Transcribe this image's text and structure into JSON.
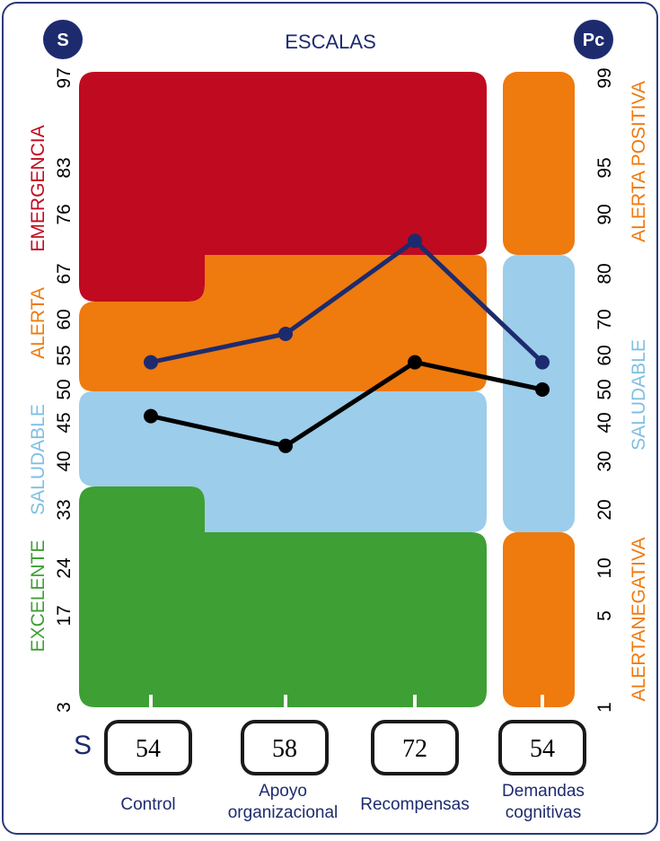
{
  "header": {
    "title": "ESCALAS",
    "left_badge": "S",
    "right_badge": "Pc"
  },
  "colors": {
    "navy": "#1d2b6e",
    "frame": "#2a3a7a",
    "emergencia": "#c00a1f",
    "alerta": "#ef7a0e",
    "saludable": "#9ccdea",
    "excelente": "#3e9f35",
    "black": "#000000"
  },
  "zones_left": [
    "EMERGENCIA",
    "ALERTA",
    "SALUDABLE",
    "EXCELENTE"
  ],
  "zones_right": [
    "ALERTA POSITIVA",
    "SALUDABLE",
    "ALERTANEGATIVA"
  ],
  "left_axis_ticks": [
    "97",
    "83",
    "76",
    "67",
    "60",
    "55",
    "50",
    "45",
    "40",
    "33",
    "24",
    "17",
    "3"
  ],
  "right_axis_ticks": [
    "99",
    "95",
    "90",
    "80",
    "70",
    "60",
    "50",
    "40",
    "30",
    "20",
    "10",
    "5",
    "1"
  ],
  "s_row_label": "S",
  "chart_data": {
    "type": "line",
    "categories": [
      "Control",
      "Apoyo organizacional",
      "Recompensas",
      "Demandas cognitivas"
    ],
    "category_lines": [
      [
        "Control"
      ],
      [
        "Apoyo",
        "organizacional"
      ],
      [
        "Recompensas"
      ],
      [
        "Demandas",
        "cognitivas"
      ]
    ],
    "s_values": [
      "54",
      "58",
      "72",
      "54"
    ],
    "series": [
      {
        "color": "#1d2b6e",
        "values": [
          54,
          58,
          72,
          54
        ]
      },
      {
        "color": "#000000",
        "values": [
          46,
          42,
          54,
          50
        ]
      }
    ],
    "ylabel_left": "S",
    "ylabel_right": "Pc"
  }
}
